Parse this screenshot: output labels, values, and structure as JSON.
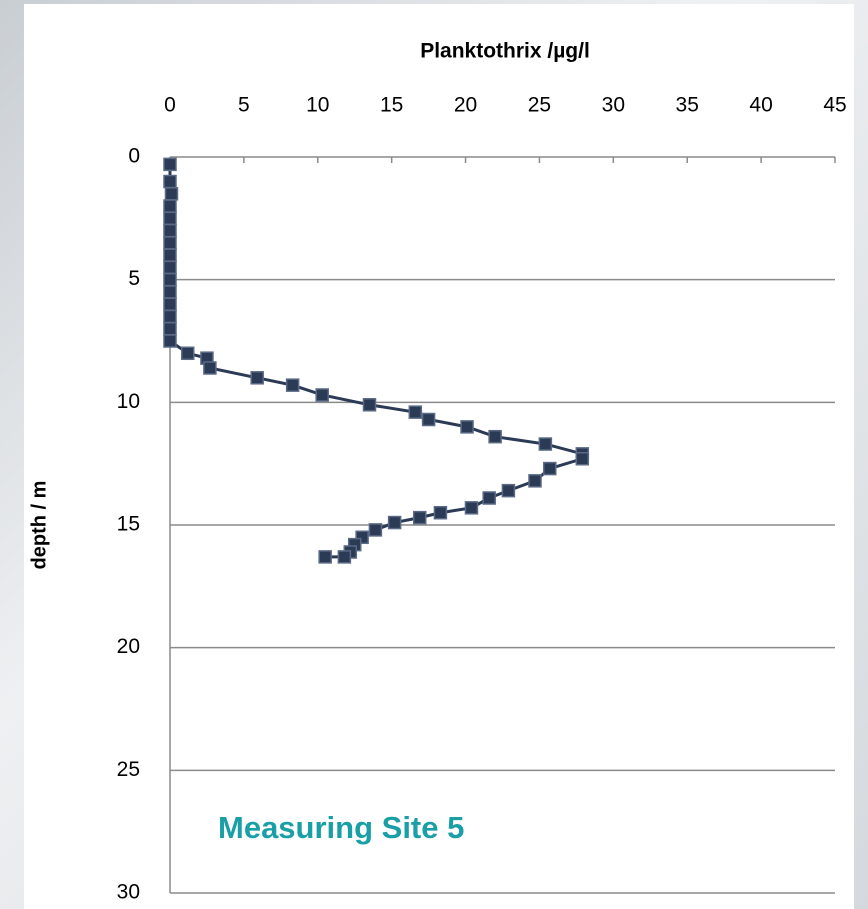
{
  "chart_data": {
    "type": "line",
    "title": "Planktothrix /µg/l",
    "y_label": "depth / m",
    "annotation": "Measuring Site 5",
    "color": "#2b3a55",
    "x": [
      0,
      0,
      0.1,
      0,
      0,
      0,
      0,
      0,
      0,
      0,
      0,
      0,
      0,
      0,
      0,
      1.2,
      2.5,
      2.7,
      5.9,
      8.3,
      10.3,
      13.5,
      16.6,
      17.5,
      20.1,
      22,
      25.4,
      27.9,
      27.9,
      25.7,
      24.7,
      22.9,
      21.6,
      20.4,
      18.3,
      16.9,
      15.2,
      13.9,
      13,
      12.5,
      12.2,
      11.8,
      10.5
    ],
    "y": [
      0.3,
      1,
      1.5,
      2,
      2.5,
      3,
      3.5,
      4,
      4.5,
      5,
      5.5,
      6,
      6.5,
      7,
      7.5,
      8,
      8.2,
      8.6,
      9,
      9.3,
      9.7,
      10.1,
      10.4,
      10.7,
      11,
      11.4,
      11.7,
      12.1,
      12.3,
      12.7,
      13.2,
      13.6,
      13.9,
      14.3,
      14.5,
      14.7,
      14.9,
      15.2,
      15.5,
      15.8,
      16.1,
      16.3,
      16.3
    ],
    "xlim": [
      0,
      45
    ],
    "xticks": [
      0,
      5,
      10,
      15,
      20,
      25,
      30,
      35,
      40,
      45
    ],
    "ylim": [
      0,
      30
    ],
    "yticks": [
      0,
      5,
      10,
      15,
      20,
      25,
      30
    ],
    "y_inverted": true,
    "x_axis_top": true,
    "grid": true
  }
}
